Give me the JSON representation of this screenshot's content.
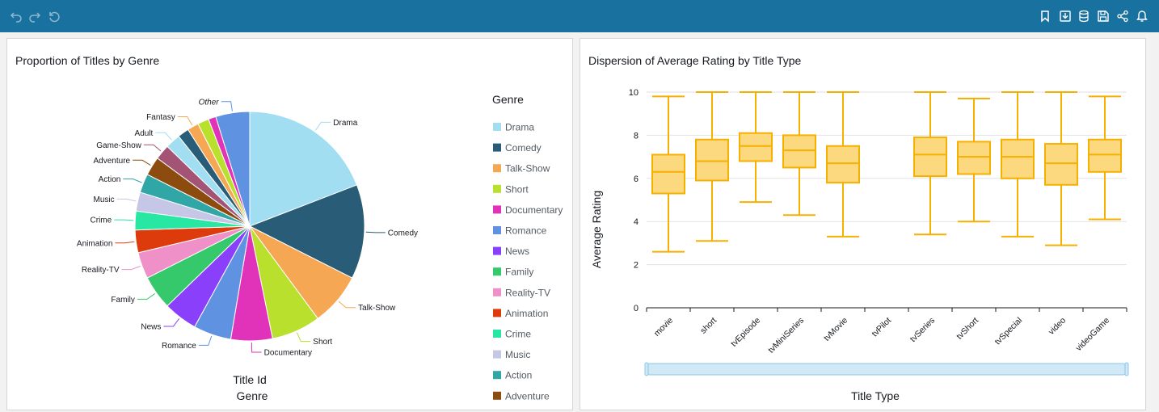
{
  "toolbar": {
    "left_icons": [
      "undo-icon",
      "redo-icon",
      "reset-icon"
    ],
    "right_icons": [
      "bookmark-icon",
      "download-icon",
      "dataset-icon",
      "save-icon",
      "share-icon",
      "alert-icon"
    ]
  },
  "colors": {
    "topbar": "#18719e",
    "box_fill": "#fcd87e",
    "box_stroke": "#f5b000",
    "scrollbar": "#d1e9f6"
  },
  "pie_panel": {
    "title": "Proportion of Titles by Genre",
    "center_label_1": "Title Id",
    "center_label_2": "Genre",
    "legend_title": "Genre"
  },
  "box_panel": {
    "title": "Dispersion of Average Rating by Title Type"
  },
  "chart_data": [
    {
      "type": "pie",
      "title": "Proportion of Titles by Genre",
      "value_field": "Title Id",
      "group_field": "Genre",
      "legend_title": "Genre",
      "legend_placement": "right",
      "slices": [
        {
          "label": "Drama",
          "value": 18.0,
          "color": "#a2def1"
        },
        {
          "label": "Comedy",
          "value": 12.5,
          "color": "#295c77"
        },
        {
          "label": "Talk-Show",
          "value": 7.0,
          "color": "#f6a754"
        },
        {
          "label": "Short",
          "value": 6.5,
          "color": "#b8e02d"
        },
        {
          "label": "Documentary",
          "value": 5.5,
          "color": "#e132ba"
        },
        {
          "label": "Romance",
          "value": 5.0,
          "color": "#5f93e2"
        },
        {
          "label": "News",
          "value": 4.5,
          "color": "#8a3ffb"
        },
        {
          "label": "Family",
          "value": 4.5,
          "color": "#35c96c"
        },
        {
          "label": "Reality-TV",
          "value": 3.5,
          "color": "#ef90c9"
        },
        {
          "label": "Animation",
          "value": 3.0,
          "color": "#dd3b0c"
        },
        {
          "label": "Crime",
          "value": 2.5,
          "color": "#28e7a3"
        },
        {
          "label": "Music",
          "value": 2.5,
          "color": "#c6c6e6"
        },
        {
          "label": "Action",
          "value": 2.5,
          "color": "#31a6a6"
        },
        {
          "label": "Adventure",
          "value": 2.5,
          "color": "#8c4c0f"
        },
        {
          "label": "Game-Show",
          "value": 2.0,
          "color": "#a35475"
        },
        {
          "label": "Adult",
          "value": 2.0,
          "color": "#a2def1"
        },
        {
          "label": "",
          "value": 1.5,
          "color": "#295c77"
        },
        {
          "label": "Fantasy",
          "value": 1.5,
          "color": "#f6a754"
        },
        {
          "label": "",
          "value": 1.5,
          "color": "#b8e02d"
        },
        {
          "label": "",
          "value": 1.0,
          "color": "#e132ba"
        },
        {
          "label": "Other",
          "value": 4.5,
          "color": "#5f93e2"
        }
      ],
      "legend_entries": [
        "Drama",
        "Comedy",
        "Talk-Show",
        "Short",
        "Documentary",
        "Romance",
        "News",
        "Family",
        "Reality-TV",
        "Animation",
        "Crime",
        "Music",
        "Action",
        "Adventure"
      ]
    },
    {
      "type": "box",
      "title": "Dispersion of Average Rating by Title Type",
      "xlabel": "Title Type",
      "ylabel": "Average Rating",
      "ylim": [
        0,
        10
      ],
      "yticks": [
        0,
        2,
        4,
        6,
        8,
        10
      ],
      "grid": true,
      "categories": [
        "movie",
        "short",
        "tvEpisode",
        "tvMiniSeries",
        "tvMovie",
        "tvPilot",
        "tvSeries",
        "tvShort",
        "tvSpecial",
        "video",
        "videoGame"
      ],
      "boxes": [
        {
          "min": 2.6,
          "q1": 5.3,
          "median": 6.3,
          "q3": 7.1,
          "max": 9.8
        },
        {
          "min": 3.1,
          "q1": 5.9,
          "median": 6.8,
          "q3": 7.8,
          "max": 10.0
        },
        {
          "min": 4.9,
          "q1": 6.8,
          "median": 7.5,
          "q3": 8.1,
          "max": 10.0
        },
        {
          "min": 4.3,
          "q1": 6.5,
          "median": 7.3,
          "q3": 8.0,
          "max": 10.0
        },
        {
          "min": 3.3,
          "q1": 5.8,
          "median": 6.7,
          "q3": 7.5,
          "max": 10.0
        },
        null,
        {
          "min": 3.4,
          "q1": 6.1,
          "median": 7.1,
          "q3": 7.9,
          "max": 10.0
        },
        {
          "min": 4.0,
          "q1": 6.2,
          "median": 7.0,
          "q3": 7.7,
          "max": 9.7
        },
        {
          "min": 3.3,
          "q1": 6.0,
          "median": 7.0,
          "q3": 7.8,
          "max": 10.0
        },
        {
          "min": 2.9,
          "q1": 5.7,
          "median": 6.7,
          "q3": 7.6,
          "max": 10.0
        },
        {
          "min": 4.1,
          "q1": 6.3,
          "median": 7.1,
          "q3": 7.8,
          "max": 9.8
        }
      ]
    }
  ]
}
